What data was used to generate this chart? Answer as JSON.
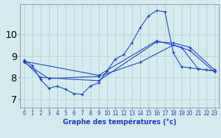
{
  "title": "Graphe des températures (°c)",
  "bg_color": "#d4ecee",
  "line_color": "#1a3fcc",
  "grid_color": "#aacccc",
  "xlim": [
    -0.5,
    23.5
  ],
  "ylim": [
    6.6,
    11.4
  ],
  "yticks": [
    7,
    8,
    9,
    10
  ],
  "xticks": [
    0,
    1,
    2,
    3,
    4,
    5,
    6,
    7,
    8,
    9,
    10,
    11,
    12,
    13,
    14,
    15,
    16,
    17,
    18,
    19,
    20,
    21,
    22,
    23
  ],
  "series1_x": [
    0,
    1,
    2,
    3,
    4,
    5,
    6,
    7,
    8,
    9,
    10,
    11,
    12,
    13,
    14,
    15,
    16,
    17,
    18,
    19,
    20,
    21,
    22,
    23
  ],
  "series1_y": [
    8.8,
    8.55,
    7.9,
    7.5,
    7.6,
    7.45,
    7.25,
    7.22,
    7.6,
    7.75,
    8.3,
    8.85,
    9.05,
    9.6,
    10.3,
    10.85,
    11.1,
    11.05,
    9.15,
    8.5,
    8.45,
    8.4,
    8.35,
    8.3
  ],
  "series2_x": [
    0,
    2,
    9,
    16,
    18,
    20,
    23
  ],
  "series2_y": [
    8.75,
    8.0,
    7.85,
    9.65,
    9.6,
    9.4,
    8.35
  ],
  "series3_x": [
    0,
    9,
    16,
    19,
    21,
    23
  ],
  "series3_y": [
    8.75,
    8.1,
    9.7,
    9.4,
    8.4,
    8.3
  ],
  "series4_x": [
    0,
    3,
    9,
    14,
    18,
    20,
    23
  ],
  "series4_y": [
    8.7,
    7.95,
    8.05,
    8.7,
    9.5,
    9.25,
    8.25
  ],
  "tick_fontsize": 5.5,
  "label_fontsize": 7.0
}
